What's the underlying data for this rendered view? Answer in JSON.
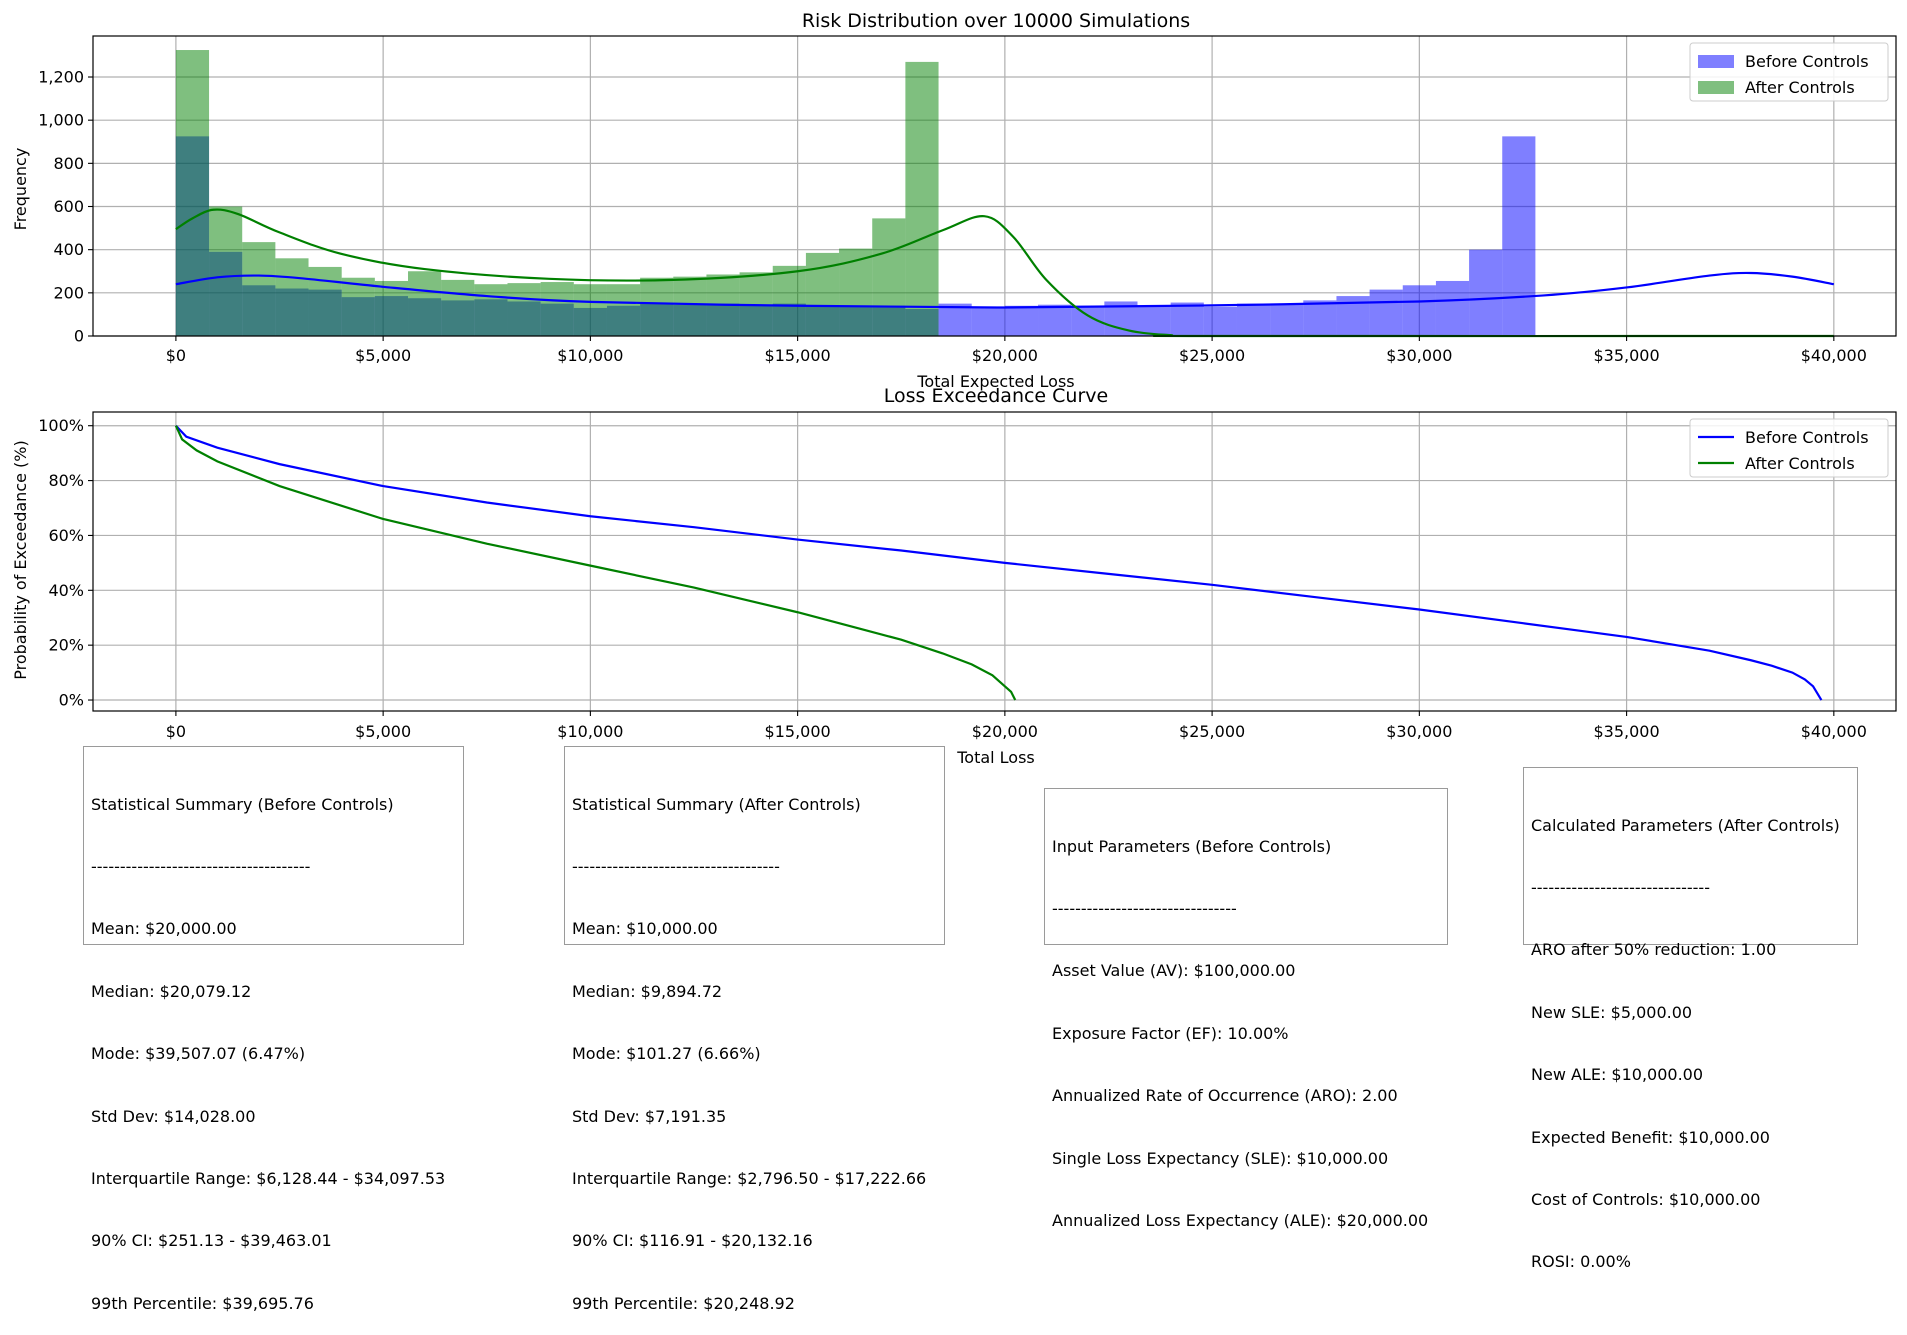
{
  "chart_data": [
    {
      "type": "bar",
      "subtype": "histogram",
      "title": "Risk Distribution over 10000 Simulations",
      "xlabel": "Total Expected Loss",
      "ylabel": "Frequency",
      "xlim": [
        -2000,
        41500
      ],
      "ylim": [
        0,
        1390
      ],
      "grid": true,
      "legend": "top-right",
      "x_ticks": [
        0,
        5000,
        10000,
        15000,
        20000,
        25000,
        30000,
        35000,
        40000
      ],
      "x_tick_labels": [
        "$0",
        "$5,000",
        "$10,000",
        "$15,000",
        "$20,000",
        "$25,000",
        "$30,000",
        "$35,000",
        "$40,000"
      ],
      "y_ticks": [
        0,
        200,
        400,
        600,
        800,
        1000,
        1200
      ],
      "y_tick_labels": [
        "0",
        "200",
        "400",
        "600",
        "800",
        "1,000",
        "1,200"
      ],
      "series": [
        {
          "name": "Before Controls",
          "color": "#0000ff",
          "bin_start": 0,
          "bin_width": 800,
          "values": [
            925,
            390,
            235,
            220,
            215,
            180,
            185,
            175,
            165,
            170,
            160,
            150,
            130,
            140,
            150,
            145,
            150,
            145,
            150,
            140,
            135,
            140,
            125,
            150,
            130,
            140,
            145,
            140,
            160,
            140,
            155,
            135,
            150,
            145,
            165,
            185,
            215,
            235,
            255,
            400,
            925
          ],
          "kde_x": [
            0,
            1000,
            2000,
            3000,
            5000,
            7500,
            10000,
            15000,
            20000,
            25000,
            30000,
            33000,
            35000,
            37000,
            38000,
            39000,
            40000
          ],
          "kde_y": [
            240,
            272,
            280,
            268,
            228,
            185,
            158,
            140,
            132,
            142,
            160,
            188,
            225,
            280,
            292,
            275,
            240
          ]
        },
        {
          "name": "After Controls",
          "color": "#008000",
          "bin_start": 0,
          "bin_width": 800,
          "values": [
            1325,
            600,
            435,
            360,
            320,
            270,
            255,
            300,
            260,
            240,
            245,
            250,
            240,
            240,
            270,
            275,
            285,
            295,
            325,
            385,
            405,
            545,
            1270
          ],
          "kde_x": [
            0,
            400,
            900,
            1500,
            2500,
            4000,
            6000,
            9000,
            12000,
            15000,
            17000,
            18500,
            19500,
            20200,
            21000,
            22000,
            23000,
            24000,
            25000,
            40000
          ],
          "kde_y": [
            495,
            545,
            585,
            565,
            480,
            380,
            310,
            265,
            260,
            300,
            380,
            490,
            555,
            460,
            260,
            95,
            25,
            4,
            0,
            0
          ]
        }
      ]
    },
    {
      "type": "line",
      "title": "Loss Exceedance Curve",
      "xlabel": "Total Loss",
      "ylabel": "Probability of Exceedance (%)",
      "xlim": [
        -2000,
        41500
      ],
      "ylim": [
        -4,
        105
      ],
      "grid": true,
      "legend": "top-right",
      "x_ticks": [
        0,
        5000,
        10000,
        15000,
        20000,
        25000,
        30000,
        35000,
        40000
      ],
      "x_tick_labels": [
        "$0",
        "$5,000",
        "$10,000",
        "$15,000",
        "$20,000",
        "$25,000",
        "$30,000",
        "$35,000",
        "$40,000"
      ],
      "y_ticks": [
        0,
        20,
        40,
        60,
        80,
        100
      ],
      "y_tick_labels": [
        "0%",
        "20%",
        "40%",
        "60%",
        "80%",
        "100%"
      ],
      "series": [
        {
          "name": "Before Controls",
          "color": "#0000ff",
          "x": [
            0,
            250,
            1000,
            2500,
            5000,
            7500,
            10000,
            12500,
            15000,
            17500,
            20000,
            22500,
            25000,
            27500,
            30000,
            32500,
            34000,
            35000,
            36000,
            37000,
            38000,
            38500,
            39000,
            39300,
            39500,
            39700
          ],
          "y": [
            100,
            96,
            92,
            86,
            78,
            72,
            67,
            63,
            58.5,
            54.5,
            50,
            46,
            42,
            37.5,
            33,
            28,
            25,
            23,
            20.5,
            18,
            14.5,
            12.5,
            10,
            7.5,
            5,
            0
          ]
        },
        {
          "name": "After Controls",
          "color": "#008000",
          "x": [
            0,
            150,
            500,
            1000,
            2500,
            5000,
            7500,
            10000,
            12500,
            15000,
            16500,
            17500,
            18500,
            19200,
            19700,
            20000,
            20150,
            20250
          ],
          "y": [
            100,
            95,
            91,
            87,
            78,
            66,
            57,
            49,
            41,
            32,
            26,
            22,
            17,
            13,
            9,
            5,
            3,
            0
          ]
        }
      ]
    }
  ],
  "boxes": {
    "before_stats": {
      "title": "Statistical Summary (Before Controls)",
      "sep": "--------------------------------------",
      "mean": "Mean: $20,000.00",
      "median": "Median: $20,079.12",
      "mode": "Mode: $39,507.07 (6.47%)",
      "std": "Std Dev: $14,028.00",
      "iqr": "Interquartile Range: $6,128.44 - $34,097.53",
      "ci": "90% CI: $251.13 - $39,463.01",
      "p99": "99th Percentile: $39,695.76"
    },
    "after_stats": {
      "title": "Statistical Summary (After Controls)",
      "sep": "------------------------------------",
      "mean": "Mean: $10,000.00",
      "median": "Median: $9,894.72",
      "mode": "Mode: $101.27 (6.66%)",
      "std": "Std Dev: $7,191.35",
      "iqr": "Interquartile Range: $2,796.50 - $17,222.66",
      "ci": "90% CI: $116.91 - $20,132.16",
      "p99": "99th Percentile: $20,248.92"
    },
    "input_params": {
      "title": "Input Parameters (Before Controls)",
      "sep": "--------------------------------",
      "av": "Asset Value (AV): $100,000.00",
      "ef": "Exposure Factor (EF): 10.00%",
      "aro": "Annualized Rate of Occurrence (ARO): 2.00",
      "sle": "Single Loss Expectancy (SLE): $10,000.00",
      "ale": "Annualized Loss Expectancy (ALE): $20,000.00"
    },
    "calc_params": {
      "title": "Calculated Parameters (After Controls)",
      "sep": "-------------------------------",
      "aro": "ARO after 50% reduction: 1.00",
      "sle": "New SLE: $5,000.00",
      "ale": "New ALE: $10,000.00",
      "benefit": "Expected Benefit: $10,000.00",
      "cost": "Cost of Controls: $10,000.00",
      "rosi": "ROSI: 0.00%"
    }
  }
}
